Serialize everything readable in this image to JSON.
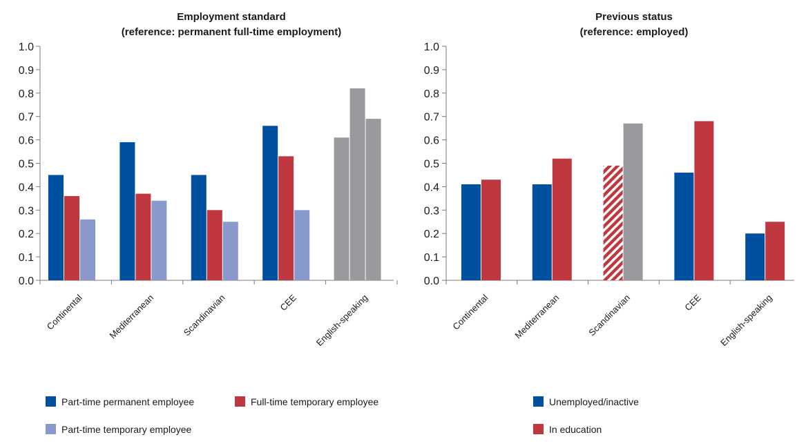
{
  "colors": {
    "blue": "#0050a0",
    "red": "#c0383f",
    "lightblue": "#8a99cc",
    "gray": "#9a9a9e",
    "hatch": "#c0383f"
  },
  "chart_data": [
    {
      "type": "bar",
      "title": "Employment standard",
      "subtitle": "(reference: permanent full-time employment)",
      "ylim": [
        0,
        1.0
      ],
      "yticks": [
        "0.0",
        "0.1",
        "0.2",
        "0.3",
        "0.4",
        "0.5",
        "0.6",
        "0.7",
        "0.8",
        "0.9",
        "1.0"
      ],
      "categories": [
        "Continental",
        "Mediterranean",
        "Scandinavian",
        "CEE",
        "English-speaking"
      ],
      "series": [
        {
          "name": "Part-time permanent employee",
          "color": "blue",
          "values": [
            0.45,
            0.59,
            0.45,
            0.66,
            0.61
          ]
        },
        {
          "name": "Full-time temporary employee",
          "color": "red",
          "values": [
            0.36,
            0.37,
            0.3,
            0.53,
            0.82
          ]
        },
        {
          "name": "Part-time temporary employee",
          "color": "lightblue",
          "values": [
            0.26,
            0.34,
            0.25,
            0.3,
            0.69
          ]
        }
      ],
      "bar_styles": {
        "4": [
          "gray",
          "gray",
          "gray"
        ]
      },
      "legend": {
        "placement": "bottom"
      }
    },
    {
      "type": "bar",
      "title": "Previous status",
      "subtitle": "(reference: employed)",
      "ylim": [
        0,
        1.0
      ],
      "yticks": [
        "0.0",
        "0.1",
        "0.2",
        "0.3",
        "0.4",
        "0.5",
        "0.6",
        "0.7",
        "0.8",
        "0.9",
        "1.0"
      ],
      "categories": [
        "Continental",
        "Mediterranean",
        "Scandinavian",
        "CEE",
        "English-speaking"
      ],
      "series": [
        {
          "name": "Unemployed/inactive",
          "color": "blue",
          "values": [
            0.41,
            0.41,
            0.49,
            0.46,
            0.2
          ]
        },
        {
          "name": "In education",
          "color": "red",
          "values": [
            0.43,
            0.52,
            0.67,
            0.68,
            0.25
          ]
        }
      ],
      "bar_styles": {
        "2": [
          "hatch",
          "gray"
        ]
      },
      "legend": {
        "placement": "bottom"
      }
    }
  ]
}
